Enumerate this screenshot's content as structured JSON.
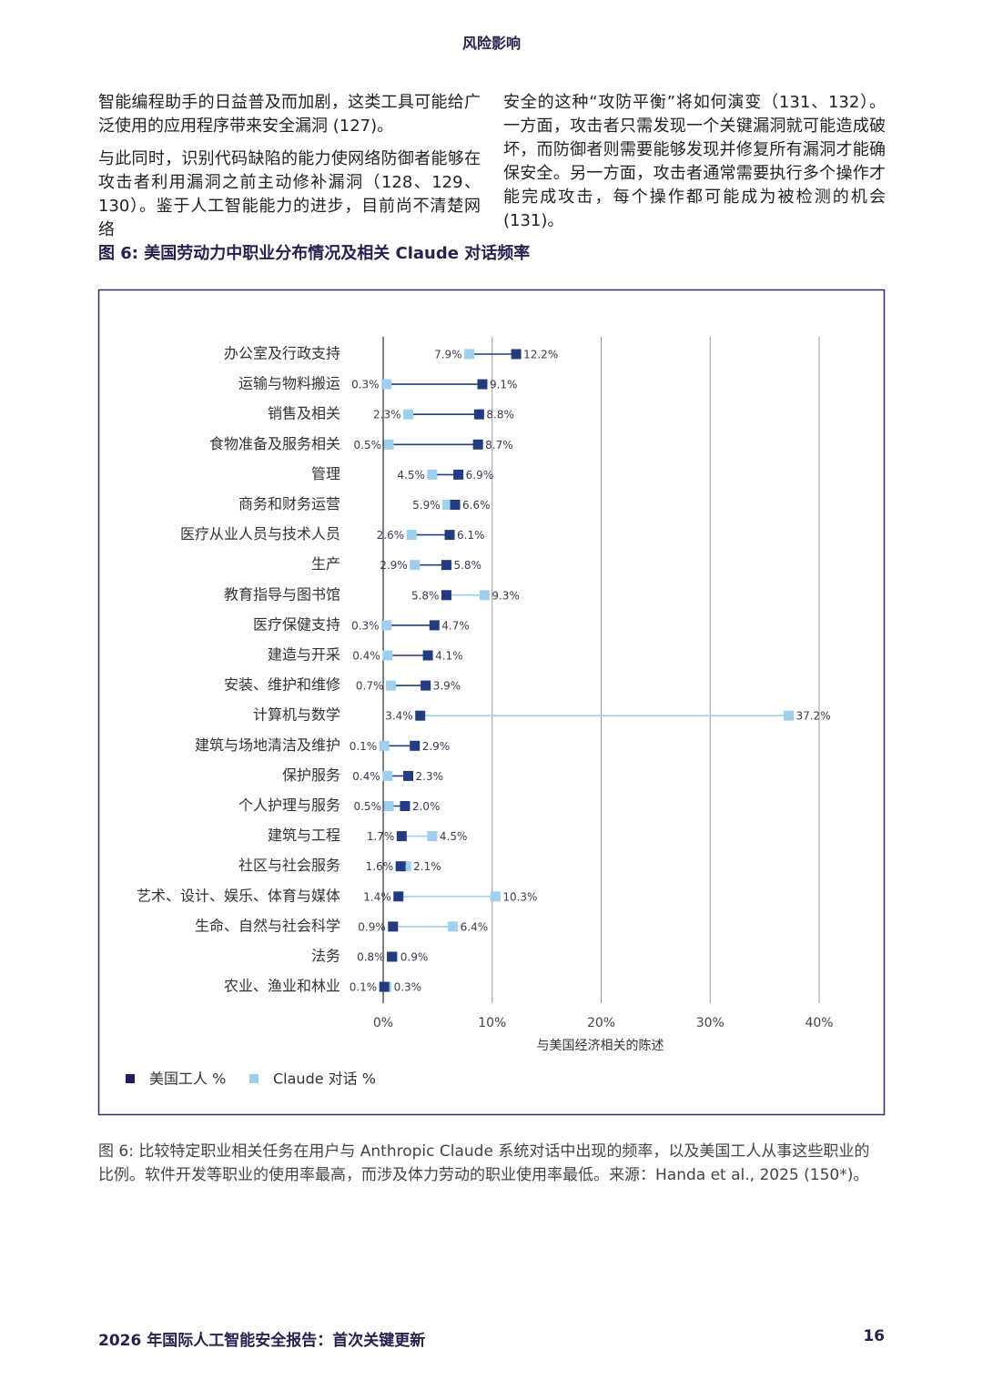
{
  "header": {
    "title": "风险影响"
  },
  "body": {
    "left": [
      "智能编程助手的日益普及而加剧，这类工具可能给广泛使用的应用程序带来安全漏洞 (127)。",
      "与此同时，识别代码缺陷的能力使网络防御者能够在攻击者利用漏洞之前主动修补漏洞（128、129、130）。鉴于人工智能能力的进步，目前尚不清楚网络"
    ],
    "right": [
      "安全的这种“攻防平衡”将如何演变（131、132）。一方面，攻击者只需发现一个关键漏洞就可能造成破坏，而防御者则需要能够发现并修复所有漏洞才能确保安全。另一方面，攻击者通常需要执行多个操作才能完成攻击，每个操作都可能成为被检测的机会 (131)。"
    ]
  },
  "figure_title": "图 6: 美国劳动力中职业分布情况及相关 Claude 对话频率",
  "chart_data": {
    "type": "dumbbell",
    "categories": [
      "办公室及行政支持",
      "运输与物料搬运",
      "销售及相关",
      "食物准备及服务相关",
      "管理",
      "商务和财务运营",
      "医疗从业人员与技术人员",
      "生产",
      "教育指导与图书馆",
      "医疗保健支持",
      "建造与开采",
      "安装、维护和维修",
      "计算机与数学",
      "建筑与场地清洁及维护",
      "保护服务",
      "个人护理与服务",
      "建筑与工程",
      "社区与社会服务",
      "艺术、设计、娱乐、体育与媒体",
      "生命、自然与社会科学",
      "法务",
      "农业、渔业和林业"
    ],
    "series": [
      {
        "name": "美国工人 %",
        "color": "#243c7f",
        "values": [
          12.2,
          9.1,
          8.8,
          8.7,
          6.9,
          6.6,
          6.1,
          5.8,
          5.8,
          4.7,
          4.1,
          3.9,
          3.4,
          2.9,
          2.3,
          2.0,
          1.7,
          1.6,
          1.4,
          0.9,
          0.8,
          0.1
        ],
        "value_labels": [
          "12.2%",
          "9.1%",
          "8.8%",
          "8.7%",
          "6.9%",
          "6.6%",
          "6.1%",
          "5.8%",
          "5.8%",
          "4.7%",
          "4.1%",
          "3.9%",
          "3.4%",
          "2.9%",
          "2.3%",
          "2.0%",
          "1.7%",
          "1.6%",
          "1.4%",
          "0.9%",
          "0.8%",
          "0.1%"
        ]
      },
      {
        "name": "Claude 对话 %",
        "color": "#9ecfec",
        "values": [
          7.9,
          0.3,
          2.3,
          0.5,
          4.5,
          5.9,
          2.6,
          2.9,
          9.3,
          0.3,
          0.4,
          0.7,
          37.2,
          0.1,
          0.4,
          0.5,
          4.5,
          2.1,
          10.3,
          6.4,
          0.9,
          0.3
        ],
        "value_labels": [
          "7.9%",
          "0.3%",
          "2.3%",
          "0.5%",
          "4.5%",
          "5.9%",
          "2.6%",
          "2.9%",
          "9.3%",
          "0.3%",
          "0.4%",
          "0.7%",
          "37.2%",
          "0.1%",
          "0.4%",
          "0.5%",
          "4.5%",
          "2.1%",
          "10.3%",
          "6.4%",
          "0.9%",
          "0.3%"
        ]
      }
    ],
    "xlim": [
      0,
      40
    ],
    "xticks": [
      {
        "value": 0,
        "label": "0%"
      },
      {
        "value": 10,
        "label": "10%"
      },
      {
        "value": 20,
        "label": "20%"
      },
      {
        "value": 30,
        "label": "30%"
      },
      {
        "value": 40,
        "label": "40%"
      }
    ],
    "x_label": "与美国经济相关的陈述",
    "grid": true,
    "legend": "bottom-left"
  },
  "caption": "图 6: 比较特定职业相关任务在用户与 Anthropic Claude 系统对话中出现的频率，以及美国工人从事这些职业的比例。软件开发等职业的使用率最高，而涉及体力劳动的职业使用率最低。来源：Handa et al., 2025 (150*)。",
  "footer": {
    "title": "2026 年国际人工智能安全报告：首次关键更新",
    "page": "16"
  }
}
